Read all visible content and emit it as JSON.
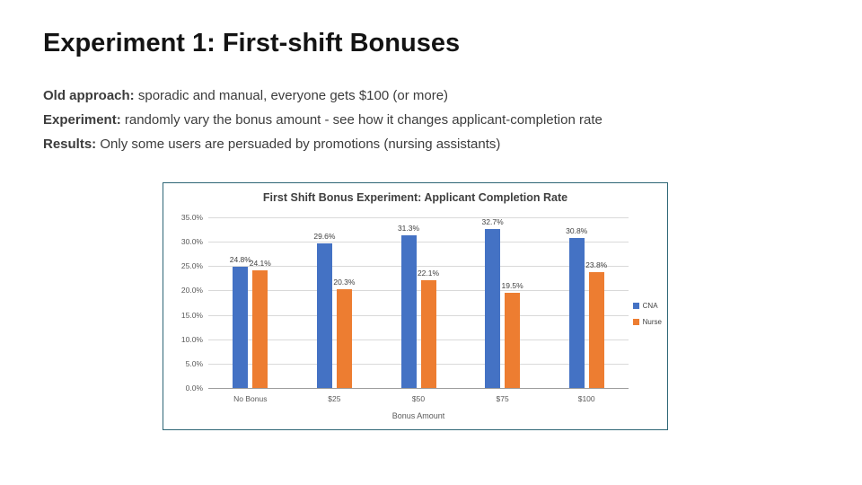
{
  "slide": {
    "title": "Experiment 1: First-shift Bonuses",
    "lines": [
      {
        "label": "Old approach:",
        "text": " sporadic and manual, everyone gets $100 (or more)"
      },
      {
        "label": "Experiment:",
        "text": " randomly vary the bonus amount - see how it changes applicant-completion rate"
      },
      {
        "label": "Results:",
        "text": " Only some users are persuaded by promotions (nursing assistants)"
      }
    ]
  },
  "chart_data": {
    "type": "bar",
    "title": "First Shift Bonus Experiment: Applicant Completion Rate",
    "categories": [
      "No Bonus",
      "$25",
      "$50",
      "$75",
      "$100"
    ],
    "series": [
      {
        "name": "CNA",
        "color": "#4472C4",
        "values": [
          24.8,
          29.6,
          31.3,
          32.7,
          30.8
        ]
      },
      {
        "name": "Nurse",
        "color": "#ED7D31",
        "values": [
          24.1,
          20.3,
          22.1,
          19.5,
          23.8
        ]
      }
    ],
    "xlabel": "Bonus Amount",
    "ylabel": "",
    "ylim": [
      0,
      35
    ],
    "ytick_step": 5,
    "ytick_labels": [
      "0.0%",
      "5.0%",
      "10.0%",
      "15.0%",
      "20.0%",
      "25.0%",
      "30.0%",
      "35.0%"
    ],
    "grid": true,
    "legend_position": "right",
    "data_label_format": "percent_one_decimal",
    "colors": {
      "frame_border": "#2e6676",
      "gridline": "#d9d9d9",
      "axis_text": "#595959",
      "title_text": "#404040"
    }
  }
}
